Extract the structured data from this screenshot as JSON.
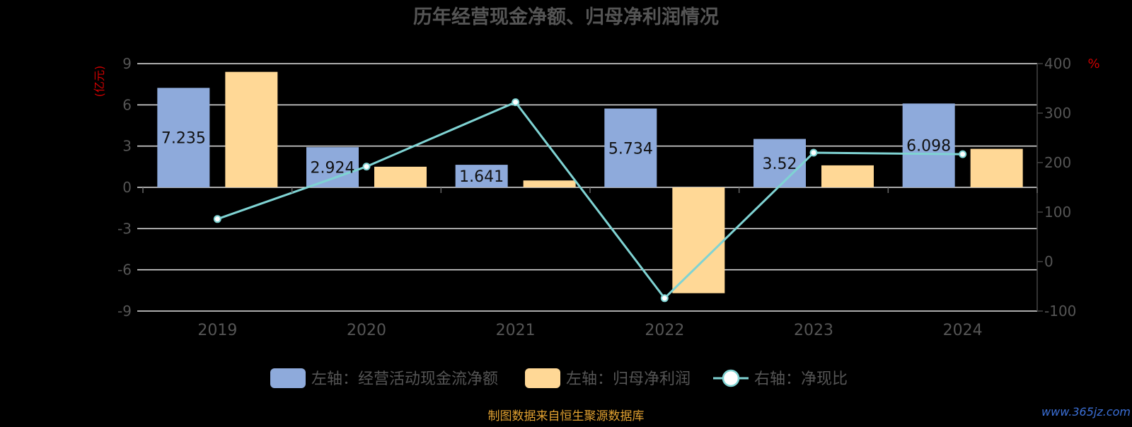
{
  "chart_data": {
    "type": "bar",
    "title": "历年经营现金净额、归母净利润情况",
    "categories": [
      "2019",
      "2020",
      "2021",
      "2022",
      "2023",
      "2024"
    ],
    "y_left": {
      "unit_label": "(亿元)",
      "ticks": [
        9,
        6,
        3,
        0,
        -3,
        -6,
        -9
      ],
      "ylim": [
        -9,
        9
      ]
    },
    "y_right": {
      "unit_label": "%",
      "ticks": [
        400,
        300,
        200,
        100,
        0,
        -100
      ],
      "ylim": [
        -100,
        400
      ]
    },
    "series": [
      {
        "name": "左轴：经营活动现金流净额",
        "kind": "bar",
        "axis": "left",
        "color": "#8eaadb",
        "values": [
          7.235,
          2.924,
          1.641,
          5.734,
          3.52,
          6.098
        ],
        "labels": [
          "7.235",
          "2.924",
          "1.641",
          "5.734",
          "3.52",
          "6.098"
        ]
      },
      {
        "name": "左轴：归母净利润",
        "kind": "bar",
        "axis": "left",
        "color": "#ffd896",
        "values": [
          8.4,
          1.5,
          0.5,
          -7.7,
          1.6,
          2.8
        ]
      },
      {
        "name": "右轴：净现比",
        "kind": "line",
        "axis": "right",
        "color": "#7fd3d3",
        "values": [
          86,
          192,
          322,
          -74,
          220,
          217
        ]
      }
    ],
    "grid": true,
    "legend_position": "bottom-center"
  },
  "colors": {
    "background": "#000000",
    "title": "#555555",
    "axis_text": "#555555",
    "unit_label": "#d00000",
    "source_text": "#e0a030",
    "watermark": "#3b6fd6"
  },
  "source_note": "制图数据来自恒生聚源数据库",
  "watermark": "www.365jz.com"
}
